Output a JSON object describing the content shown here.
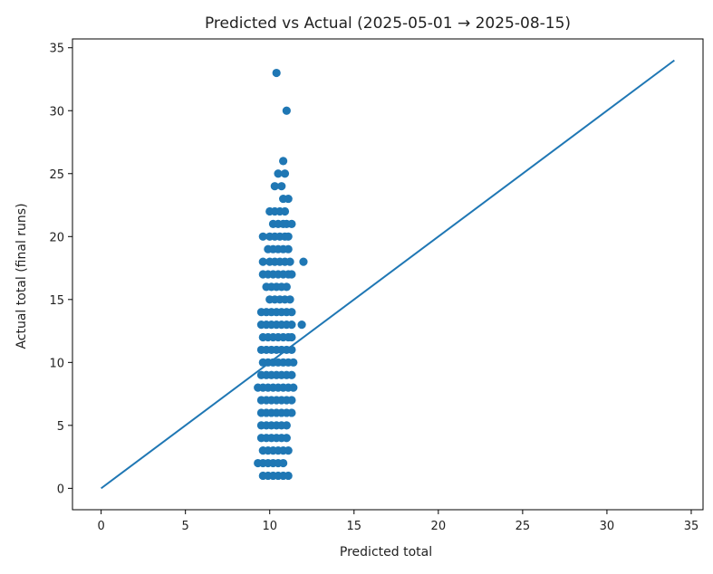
{
  "chart_data": {
    "type": "scatter",
    "title": "Predicted vs Actual (2025-05-01 → 2025-08-15)",
    "xlabel": "Predicted total",
    "ylabel": "Actual total (final runs)",
    "xlim": [
      -1.7,
      35.7
    ],
    "ylim": [
      -1.7,
      35.7
    ],
    "xticks": [
      0,
      5,
      10,
      15,
      20,
      25,
      30,
      35
    ],
    "yticks": [
      0,
      5,
      10,
      15,
      20,
      25,
      30,
      35
    ],
    "grid": false,
    "colors": {
      "points": "#1f77b4",
      "line": "#1f77b4"
    },
    "reference_line": {
      "x": [
        0,
        34
      ],
      "y": [
        0,
        34
      ]
    },
    "points": [
      [
        10.4,
        33
      ],
      [
        11.0,
        30
      ],
      [
        10.8,
        26
      ],
      [
        10.5,
        25
      ],
      [
        10.9,
        25
      ],
      [
        10.3,
        24
      ],
      [
        10.7,
        24
      ],
      [
        10.8,
        23
      ],
      [
        11.1,
        23
      ],
      [
        10.0,
        22
      ],
      [
        10.3,
        22
      ],
      [
        10.6,
        22
      ],
      [
        10.9,
        22
      ],
      [
        10.2,
        21
      ],
      [
        10.5,
        21
      ],
      [
        10.8,
        21
      ],
      [
        11.0,
        21
      ],
      [
        11.3,
        21
      ],
      [
        9.6,
        20
      ],
      [
        10.0,
        20
      ],
      [
        10.3,
        20
      ],
      [
        10.6,
        20
      ],
      [
        10.9,
        20
      ],
      [
        11.1,
        20
      ],
      [
        9.9,
        19
      ],
      [
        10.2,
        19
      ],
      [
        10.5,
        19
      ],
      [
        10.8,
        19
      ],
      [
        11.1,
        19
      ],
      [
        9.6,
        18
      ],
      [
        10.0,
        18
      ],
      [
        10.3,
        18
      ],
      [
        10.6,
        18
      ],
      [
        10.9,
        18
      ],
      [
        11.2,
        18
      ],
      [
        12.0,
        18
      ],
      [
        9.6,
        17
      ],
      [
        9.9,
        17
      ],
      [
        10.2,
        17
      ],
      [
        10.5,
        17
      ],
      [
        10.8,
        17
      ],
      [
        11.1,
        17
      ],
      [
        11.3,
        17
      ],
      [
        9.8,
        16
      ],
      [
        10.1,
        16
      ],
      [
        10.4,
        16
      ],
      [
        10.7,
        16
      ],
      [
        11.0,
        16
      ],
      [
        10.0,
        15
      ],
      [
        10.3,
        15
      ],
      [
        10.6,
        15
      ],
      [
        10.9,
        15
      ],
      [
        11.2,
        15
      ],
      [
        9.5,
        14
      ],
      [
        9.8,
        14
      ],
      [
        10.1,
        14
      ],
      [
        10.4,
        14
      ],
      [
        10.7,
        14
      ],
      [
        11.0,
        14
      ],
      [
        11.3,
        14
      ],
      [
        9.5,
        13
      ],
      [
        9.8,
        13
      ],
      [
        10.1,
        13
      ],
      [
        10.4,
        13
      ],
      [
        10.7,
        13
      ],
      [
        11.0,
        13
      ],
      [
        11.3,
        13
      ],
      [
        11.9,
        13
      ],
      [
        9.6,
        12
      ],
      [
        9.9,
        12
      ],
      [
        10.2,
        12
      ],
      [
        10.5,
        12
      ],
      [
        10.8,
        12
      ],
      [
        11.1,
        12
      ],
      [
        11.3,
        12
      ],
      [
        9.5,
        11
      ],
      [
        9.8,
        11
      ],
      [
        10.1,
        11
      ],
      [
        10.4,
        11
      ],
      [
        10.7,
        11
      ],
      [
        11.0,
        11
      ],
      [
        11.3,
        11
      ],
      [
        9.6,
        10
      ],
      [
        9.9,
        10
      ],
      [
        10.2,
        10
      ],
      [
        10.5,
        10
      ],
      [
        10.8,
        10
      ],
      [
        11.1,
        10
      ],
      [
        11.4,
        10
      ],
      [
        9.5,
        9
      ],
      [
        9.8,
        9
      ],
      [
        10.1,
        9
      ],
      [
        10.4,
        9
      ],
      [
        10.7,
        9
      ],
      [
        11.0,
        9
      ],
      [
        11.3,
        9
      ],
      [
        9.3,
        8
      ],
      [
        9.6,
        8
      ],
      [
        9.9,
        8
      ],
      [
        10.2,
        8
      ],
      [
        10.5,
        8
      ],
      [
        10.8,
        8
      ],
      [
        11.1,
        8
      ],
      [
        11.4,
        8
      ],
      [
        9.5,
        7
      ],
      [
        9.8,
        7
      ],
      [
        10.1,
        7
      ],
      [
        10.4,
        7
      ],
      [
        10.7,
        7
      ],
      [
        11.0,
        7
      ],
      [
        11.3,
        7
      ],
      [
        9.5,
        6
      ],
      [
        9.8,
        6
      ],
      [
        10.1,
        6
      ],
      [
        10.4,
        6
      ],
      [
        10.7,
        6
      ],
      [
        11.0,
        6
      ],
      [
        11.3,
        6
      ],
      [
        9.5,
        5
      ],
      [
        9.8,
        5
      ],
      [
        10.1,
        5
      ],
      [
        10.4,
        5
      ],
      [
        10.7,
        5
      ],
      [
        11.0,
        5
      ],
      [
        9.5,
        4
      ],
      [
        9.8,
        4
      ],
      [
        10.1,
        4
      ],
      [
        10.4,
        4
      ],
      [
        10.7,
        4
      ],
      [
        11.0,
        4
      ],
      [
        9.6,
        3
      ],
      [
        9.9,
        3
      ],
      [
        10.2,
        3
      ],
      [
        10.5,
        3
      ],
      [
        10.8,
        3
      ],
      [
        11.1,
        3
      ],
      [
        9.3,
        2
      ],
      [
        9.6,
        2
      ],
      [
        9.9,
        2
      ],
      [
        10.2,
        2
      ],
      [
        10.5,
        2
      ],
      [
        10.8,
        2
      ],
      [
        9.6,
        1
      ],
      [
        9.9,
        1
      ],
      [
        10.2,
        1
      ],
      [
        10.5,
        1
      ],
      [
        10.8,
        1
      ],
      [
        11.1,
        1
      ]
    ]
  }
}
